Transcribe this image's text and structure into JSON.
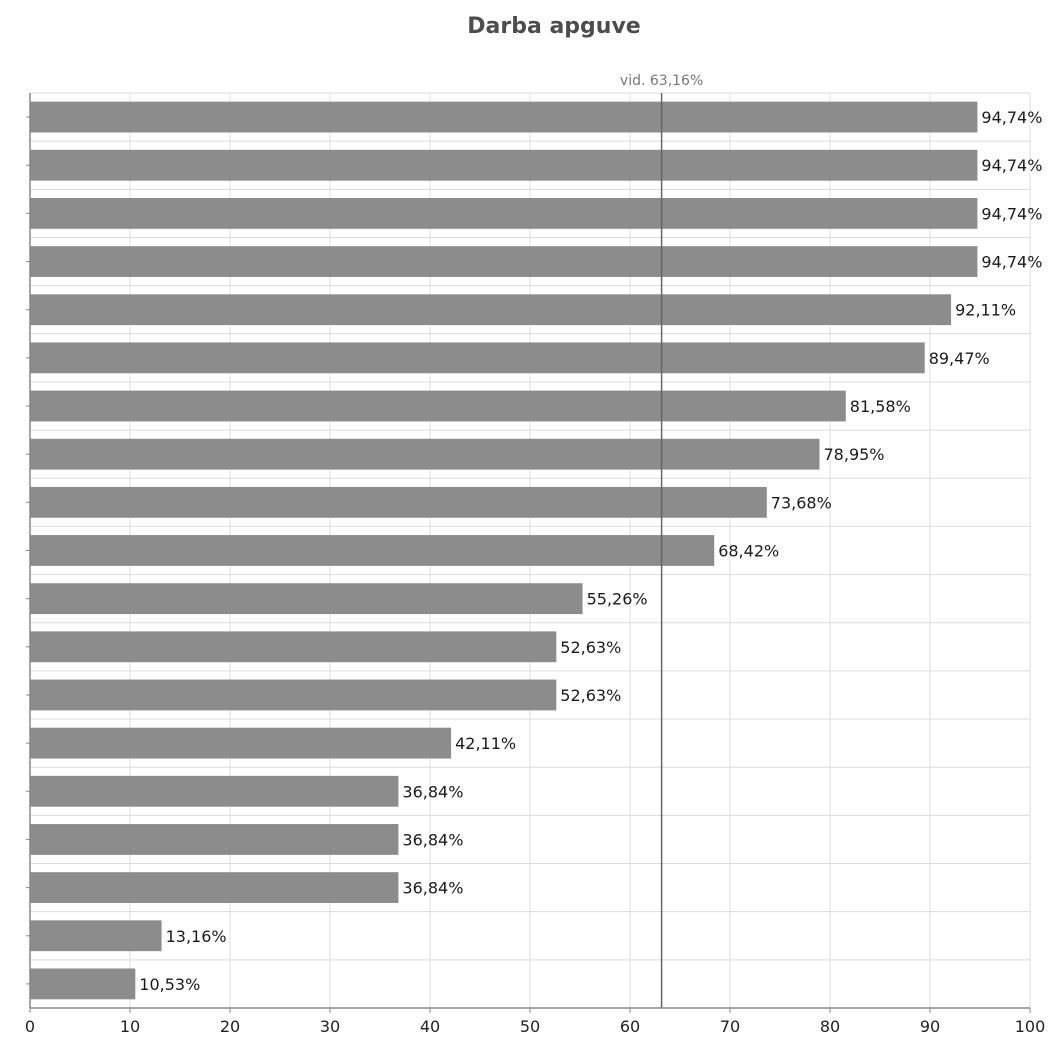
{
  "chart_data": {
    "type": "bar",
    "orientation": "horizontal",
    "title": "Darba apguve",
    "xlabel": "",
    "ylabel": "",
    "xlim": [
      0,
      100
    ],
    "xticks": [
      "0",
      "10",
      "20",
      "30",
      "40",
      "50",
      "60",
      "70",
      "80",
      "90",
      "100"
    ],
    "grid": true,
    "categories": [
      "",
      "",
      "",
      "",
      "",
      "",
      "",
      "",
      "",
      "",
      "",
      "",
      "",
      "",
      "",
      "",
      "",
      "",
      ""
    ],
    "values": [
      94.74,
      94.74,
      94.74,
      94.74,
      92.11,
      89.47,
      81.58,
      78.95,
      73.68,
      68.42,
      55.26,
      52.63,
      52.63,
      42.11,
      36.84,
      36.84,
      36.84,
      13.16,
      10.53
    ],
    "value_labels": [
      "94,74%",
      "94,74%",
      "94,74%",
      "94,74%",
      "92,11%",
      "89,47%",
      "81,58%",
      "78,95%",
      "73,68%",
      "68,42%",
      "55,26%",
      "52,63%",
      "52,63%",
      "42,11%",
      "36,84%",
      "36,84%",
      "36,84%",
      "13,16%",
      "10,53%"
    ],
    "average": {
      "value": 63.16,
      "label": "vid. 63,16%"
    },
    "colors": {
      "bar": "#8c8c8c",
      "grid": "#dcdcdc",
      "axis": "#888888",
      "average_line": "#666666"
    }
  }
}
